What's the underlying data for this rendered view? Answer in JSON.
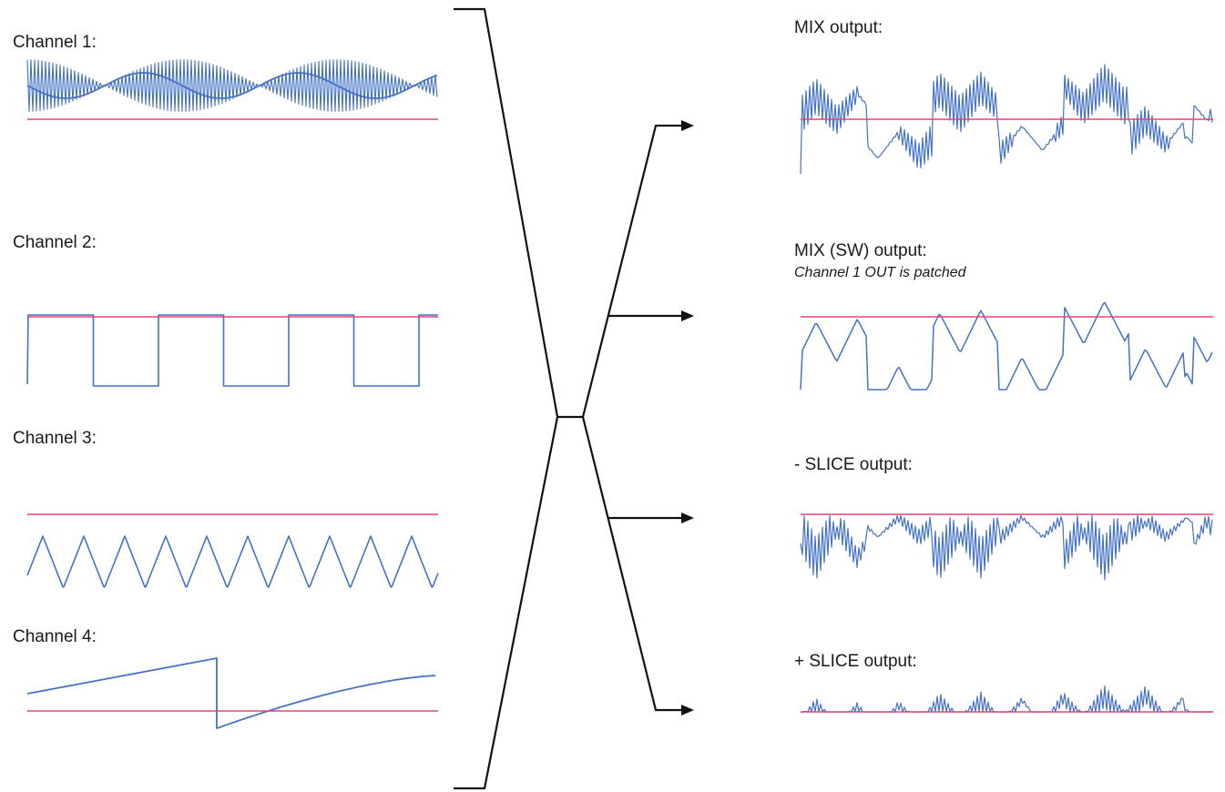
{
  "colors": {
    "signal": "#4472c4",
    "baseline": "#e8407a",
    "connector": "#111111",
    "background": "#ffffff"
  },
  "inputs": [
    {
      "label": "Channel 1:",
      "waveform": "am-modulated-sine"
    },
    {
      "label": "Channel 2:",
      "waveform": "square"
    },
    {
      "label": "Channel 3:",
      "waveform": "triangle"
    },
    {
      "label": "Channel 4:",
      "waveform": "sawtooth"
    }
  ],
  "outputs": [
    {
      "label": "MIX output:",
      "note": "",
      "waveform": "mix"
    },
    {
      "label": "MIX (SW) output:",
      "note": "Channel 1 OUT is patched",
      "waveform": "mix-switched"
    },
    {
      "label": "- SLICE output:",
      "note": "",
      "waveform": "negative-slice"
    },
    {
      "label": "+ SLICE output:",
      "note": "",
      "waveform": "positive-slice"
    }
  ]
}
